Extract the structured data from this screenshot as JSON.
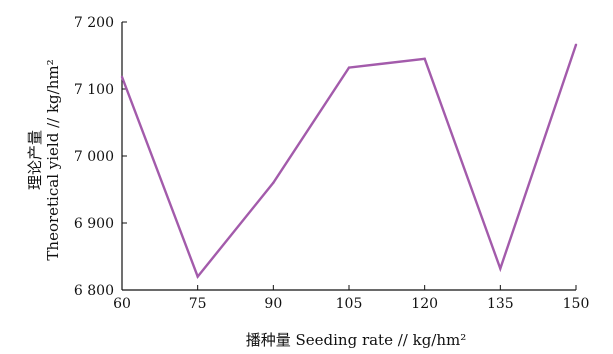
{
  "chart_data": {
    "type": "line",
    "x": [
      60,
      75,
      90,
      105,
      120,
      135,
      150
    ],
    "series": [
      {
        "values": [
          7118,
          6820,
          6960,
          7132,
          7145,
          6832,
          7166
        ],
        "color": "#a35bab"
      }
    ],
    "xlim": [
      60,
      150
    ],
    "ylim": [
      6800,
      7200
    ],
    "x_ticks": [
      60,
      75,
      90,
      105,
      120,
      135,
      150
    ],
    "y_ticks": [
      6800,
      6900,
      7000,
      7100,
      7200
    ],
    "x_tick_labels": [
      "60",
      "75",
      "90",
      "105",
      "120",
      "135",
      "150"
    ],
    "y_tick_labels": [
      "6 800",
      "6 900",
      "7 000",
      "7 100",
      "7 200"
    ],
    "xlabel": "播种量 Seeding rate // kg/hm²",
    "ylabel_cn": "理论产量",
    "ylabel_en": "Theoretical yield // kg/hm²",
    "grid": false,
    "legend": "none",
    "axis_color": "#111111"
  }
}
